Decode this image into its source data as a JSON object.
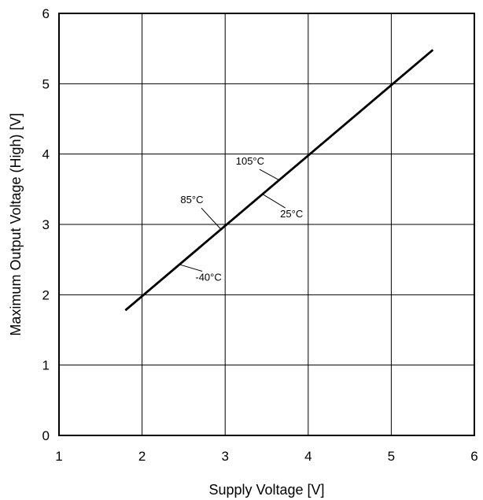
{
  "chart_data": {
    "type": "line",
    "xlabel": "Supply Voltage [V]",
    "ylabel": "Maximum Output Voltage (High) [V]",
    "xlim": [
      1,
      6
    ],
    "ylim": [
      0,
      6
    ],
    "xticks": [
      1,
      2,
      3,
      4,
      5,
      6
    ],
    "yticks": [
      0,
      1,
      2,
      3,
      4,
      5,
      6
    ],
    "grid": true,
    "legend": "none",
    "series": [
      {
        "name": "-40°C",
        "x": [
          1.8,
          5.5
        ],
        "y": [
          1.78,
          5.48
        ]
      },
      {
        "name": "25°C",
        "x": [
          1.8,
          5.5
        ],
        "y": [
          1.78,
          5.48
        ]
      },
      {
        "name": "85°C",
        "x": [
          1.8,
          5.5
        ],
        "y": [
          1.78,
          5.48
        ]
      },
      {
        "name": "105°C",
        "x": [
          1.8,
          5.5
        ],
        "y": [
          1.78,
          5.48
        ]
      }
    ],
    "annotations": [
      {
        "text": "105°C",
        "x": 3.3,
        "y": 3.85
      },
      {
        "text": "85°C",
        "x": 2.6,
        "y": 3.3
      },
      {
        "text": "25°C",
        "x": 3.8,
        "y": 3.1
      },
      {
        "text": "-40°C",
        "x": 2.8,
        "y": 2.2
      }
    ],
    "colors": {
      "line": "#000000",
      "grid": "#000000"
    }
  }
}
